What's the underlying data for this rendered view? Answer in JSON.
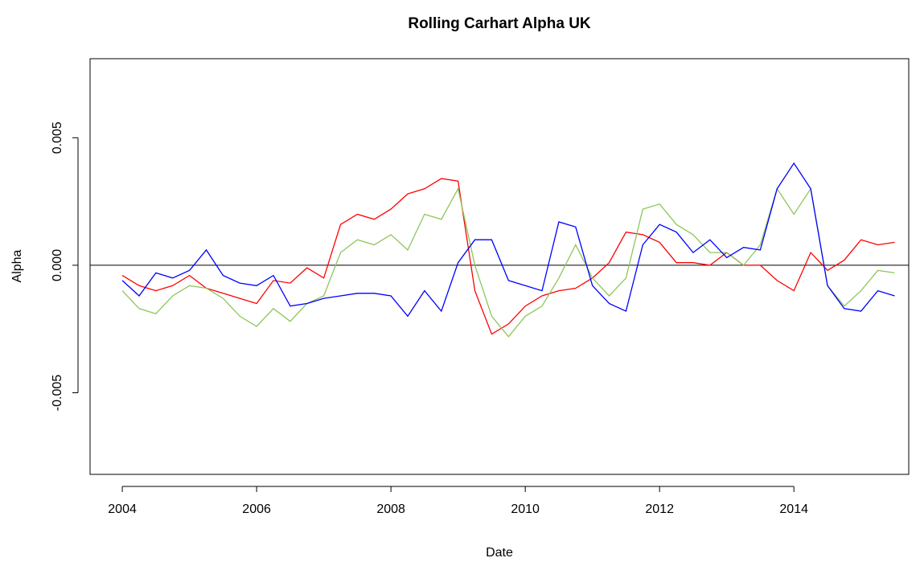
{
  "chart_data": {
    "type": "line",
    "title": "Rolling Carhart Alpha UK",
    "x_label": "Date",
    "y_label": "Alpha",
    "x": [
      2004.0,
      2004.25,
      2004.5,
      2004.75,
      2005.0,
      2005.25,
      2005.5,
      2005.75,
      2006.0,
      2006.25,
      2006.5,
      2006.75,
      2007.0,
      2007.25,
      2007.5,
      2007.75,
      2008.0,
      2008.25,
      2008.5,
      2008.75,
      2009.0,
      2009.25,
      2009.5,
      2009.75,
      2010.0,
      2010.25,
      2010.5,
      2010.75,
      2011.0,
      2011.25,
      2011.5,
      2011.75,
      2012.0,
      2012.25,
      2012.5,
      2012.75,
      2013.0,
      2013.25,
      2013.5,
      2013.75,
      2014.0,
      2014.25,
      2014.5,
      2014.75,
      2015.0,
      2015.25,
      2015.5
    ],
    "series": [
      {
        "color": "#ff0000",
        "values": [
          -0.0004,
          -0.0008,
          -0.001,
          -0.0008,
          -0.0004,
          -0.0009,
          -0.0011,
          -0.0013,
          -0.0015,
          -0.0006,
          -0.0007,
          -0.0001,
          -0.0005,
          0.0016,
          0.002,
          0.0018,
          0.0022,
          0.0028,
          0.003,
          0.0034,
          0.0033,
          -0.001,
          -0.0027,
          -0.0023,
          -0.0016,
          -0.0012,
          -0.001,
          -0.0009,
          -0.0005,
          0.0001,
          0.0013,
          0.0012,
          0.0009,
          0.0001,
          0.0001,
          0.0,
          0.0005,
          0.0,
          0.0,
          -0.0006,
          -0.001,
          0.0005,
          -0.0002,
          0.0002,
          0.001,
          0.0008,
          0.0009
        ]
      },
      {
        "color": "#8fc65a",
        "values": [
          -0.001,
          -0.0017,
          -0.0019,
          -0.0012,
          -0.0008,
          -0.0009,
          -0.0013,
          -0.002,
          -0.0024,
          -0.0017,
          -0.0022,
          -0.0015,
          -0.0012,
          0.0005,
          0.001,
          0.0008,
          0.0012,
          0.0006,
          0.002,
          0.0018,
          0.003,
          0.0,
          -0.002,
          -0.0028,
          -0.002,
          -0.0016,
          -0.0005,
          0.0008,
          -0.0005,
          -0.0012,
          -0.0005,
          0.0022,
          0.0024,
          0.0016,
          0.0012,
          0.0005,
          0.0005,
          0.0,
          0.0008,
          0.003,
          0.002,
          0.003,
          -0.0008,
          -0.0016,
          -0.001,
          -0.0002,
          -0.0003
        ]
      },
      {
        "color": "#0000ff",
        "values": [
          -0.0006,
          -0.0012,
          -0.0003,
          -0.0005,
          -0.0002,
          0.0006,
          -0.0004,
          -0.0007,
          -0.0008,
          -0.0004,
          -0.0016,
          -0.0015,
          -0.0013,
          -0.0012,
          -0.0011,
          -0.0011,
          -0.0012,
          -0.002,
          -0.001,
          -0.0018,
          0.0001,
          0.001,
          0.001,
          -0.0006,
          -0.0008,
          -0.001,
          0.0017,
          0.0015,
          -0.0008,
          -0.0015,
          -0.0018,
          0.0008,
          0.0016,
          0.0013,
          0.0005,
          0.001,
          0.0003,
          0.0007,
          0.0006,
          0.003,
          0.004,
          0.003,
          -0.0008,
          -0.0017,
          -0.0018,
          -0.001,
          -0.0012
        ]
      }
    ],
    "hline": 0,
    "xlim": [
      2003.52,
      2015.71
    ],
    "xticks": [
      2004,
      2006,
      2008,
      2010,
      2012,
      2014
    ],
    "ylim": [
      -0.0082,
      0.0081
    ],
    "yticks": [
      -0.005,
      {
        "value": 0,
        "label": "0.000"
      },
      0.005
    ]
  }
}
